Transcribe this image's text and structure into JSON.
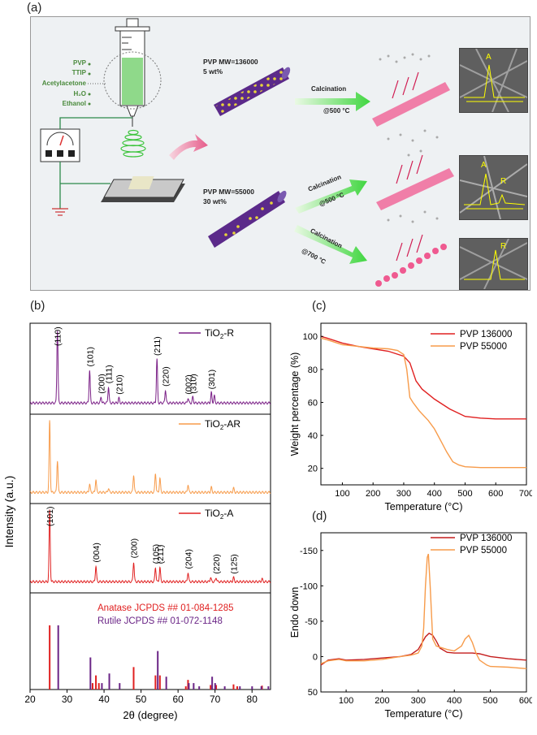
{
  "panels": {
    "a": "(a)",
    "b": "(b)",
    "c": "(c)",
    "d": "(d)"
  },
  "schematic": {
    "ingredients": [
      "PVP",
      "TTIP",
      "Acetylacetone",
      "H₂O",
      "Ethanol"
    ],
    "row1_caption_1": "PVP MW=136000",
    "row1_caption_2": "5 wt%",
    "row2_caption_1": "PVP MW=55000",
    "row2_caption_2": "30 wt%",
    "calc_label": "Calcination",
    "temp_500": "@500 °C",
    "temp_700": "@700 °C",
    "sem_labels": [
      "A",
      "A",
      "R",
      "R"
    ]
  },
  "chart_data": [
    {
      "id": "b",
      "type": "line",
      "xlabel": "2θ (degree)",
      "ylabel": "Intensity (a.u.)",
      "xlim": [
        20,
        85
      ],
      "x_ticks": [
        20,
        30,
        40,
        50,
        60,
        70,
        80
      ],
      "subpanels": [
        {
          "name": "TiO2-R",
          "color": "#7a1f86",
          "peaks": [
            [
              27.4,
              1.0
            ],
            [
              36.1,
              0.45
            ],
            [
              39.2,
              0.08
            ],
            [
              41.2,
              0.22
            ],
            [
              44.0,
              0.07
            ],
            [
              54.3,
              0.6
            ],
            [
              56.6,
              0.18
            ],
            [
              62.7,
              0.07
            ],
            [
              64.0,
              0.08
            ],
            [
              69.0,
              0.14
            ],
            [
              69.8,
              0.1
            ]
          ],
          "annotations": [
            "(110)",
            "(101)",
            "(200)",
            "(111)",
            "(210)",
            "(211)",
            "(220)",
            "(002)",
            "(310)",
            "(301)"
          ]
        },
        {
          "name": "TiO2-AR",
          "color": "#f79b4a",
          "peaks": [
            [
              25.3,
              1.0
            ],
            [
              27.4,
              0.45
            ],
            [
              36.1,
              0.12
            ],
            [
              37.8,
              0.18
            ],
            [
              41.2,
              0.06
            ],
            [
              48.0,
              0.25
            ],
            [
              53.9,
              0.27
            ],
            [
              55.1,
              0.2
            ],
            [
              62.7,
              0.11
            ],
            [
              69.0,
              0.07
            ],
            [
              75.0,
              0.06
            ]
          ],
          "annotations": []
        },
        {
          "name": "TiO2-A",
          "color": "#e02020",
          "peaks": [
            [
              25.3,
              1.0
            ],
            [
              37.8,
              0.22
            ],
            [
              48.0,
              0.28
            ],
            [
              53.9,
              0.2
            ],
            [
              55.1,
              0.2
            ],
            [
              62.7,
              0.13
            ],
            [
              68.8,
              0.06
            ],
            [
              70.3,
              0.06
            ],
            [
              75.0,
              0.06
            ],
            [
              82.7,
              0.04
            ]
          ],
          "annotations": [
            "(101)",
            "(004)",
            "(200)",
            "(105)",
            "(211)",
            "(204)",
            "(220)",
            "(125)"
          ]
        }
      ],
      "reference": {
        "anatase_label": "Anatase JCPDS ## 01-084-1285",
        "rutile_label": "Rutile JCPDS ## 01-072-1148",
        "anatase": [
          [
            25.3,
            1.0
          ],
          [
            36.9,
            0.1
          ],
          [
            37.8,
            0.22
          ],
          [
            38.6,
            0.1
          ],
          [
            48.0,
            0.35
          ],
          [
            53.9,
            0.22
          ],
          [
            55.1,
            0.22
          ],
          [
            62.1,
            0.05
          ],
          [
            62.7,
            0.15
          ],
          [
            68.8,
            0.07
          ],
          [
            70.3,
            0.07
          ],
          [
            75.0,
            0.08
          ],
          [
            76.0,
            0.05
          ],
          [
            82.7,
            0.06
          ]
        ],
        "rutile": [
          [
            27.4,
            1.0
          ],
          [
            36.1,
            0.5
          ],
          [
            39.2,
            0.1
          ],
          [
            41.2,
            0.25
          ],
          [
            44.0,
            0.1
          ],
          [
            54.3,
            0.6
          ],
          [
            56.6,
            0.2
          ],
          [
            62.7,
            0.1
          ],
          [
            64.0,
            0.1
          ],
          [
            65.5,
            0.05
          ],
          [
            69.0,
            0.2
          ],
          [
            69.8,
            0.1
          ],
          [
            72.4,
            0.05
          ],
          [
            76.5,
            0.05
          ],
          [
            79.8,
            0.05
          ],
          [
            82.3,
            0.05
          ],
          [
            84.2,
            0.05
          ]
        ]
      }
    },
    {
      "id": "c",
      "type": "line",
      "xlabel": "Temperature (°C)",
      "ylabel": "Weight percentage (%)",
      "xlim": [
        30,
        700
      ],
      "ylim": [
        10,
        108
      ],
      "x_ticks": [
        100,
        200,
        300,
        400,
        500,
        600,
        700
      ],
      "y_ticks": [
        20,
        40,
        60,
        80,
        100
      ],
      "legend_position": "top-right",
      "series": [
        {
          "name": "PVP 136000",
          "color": "#e02020",
          "x": [
            30,
            50,
            100,
            150,
            200,
            250,
            300,
            320,
            340,
            360,
            380,
            400,
            450,
            500,
            550,
            600,
            700
          ],
          "y": [
            100,
            99,
            96,
            94,
            92.5,
            91,
            88,
            84,
            73,
            68,
            65,
            62,
            56,
            51.5,
            50.5,
            50,
            50
          ]
        },
        {
          "name": "PVP 55000",
          "color": "#f79b4a",
          "x": [
            30,
            50,
            100,
            150,
            200,
            250,
            280,
            300,
            310,
            320,
            330,
            350,
            380,
            400,
            420,
            440,
            460,
            480,
            500,
            550,
            600,
            700
          ],
          "y": [
            99,
            98,
            95,
            94,
            93,
            92.5,
            91.5,
            89,
            80,
            63,
            60,
            55,
            49,
            44,
            37,
            30,
            24,
            22,
            21,
            20.5,
            20.5,
            20.5
          ]
        }
      ]
    },
    {
      "id": "d",
      "type": "line",
      "xlabel": "Temperature (°C)",
      "ylabel": "Endo down",
      "xlim": [
        30,
        600
      ],
      "ylim": [
        50,
        -175
      ],
      "x_ticks": [
        100,
        200,
        300,
        400,
        500,
        600
      ],
      "y_ticks": [
        -150,
        -100,
        -50,
        0,
        50
      ],
      "legend_position": "top-right",
      "series": [
        {
          "name": "PVP 136000",
          "color": "#c41c1c",
          "x": [
            30,
            50,
            80,
            100,
            150,
            200,
            250,
            280,
            300,
            320,
            330,
            340,
            350,
            360,
            380,
            400,
            450,
            470,
            500,
            550,
            600
          ],
          "y": [
            12,
            5,
            3,
            5,
            4,
            2,
            0,
            -3,
            -10,
            -28,
            -33,
            -30,
            -22,
            -12,
            -6,
            -5,
            -5,
            -4,
            0,
            3,
            5
          ]
        },
        {
          "name": "PVP 55000",
          "color": "#f79b4a",
          "x": [
            30,
            50,
            80,
            100,
            150,
            200,
            250,
            280,
            300,
            310,
            315,
            320,
            325,
            328,
            333,
            340,
            350,
            380,
            400,
            420,
            430,
            440,
            450,
            460,
            470,
            490,
            500,
            550,
            600
          ],
          "y": [
            10,
            6,
            4,
            6,
            6,
            4,
            0,
            -2,
            -5,
            -15,
            -40,
            -100,
            -140,
            -145,
            -100,
            -25,
            -15,
            -10,
            -8,
            -15,
            -25,
            -30,
            -20,
            -5,
            5,
            12,
            14,
            15,
            17
          ]
        }
      ]
    }
  ]
}
